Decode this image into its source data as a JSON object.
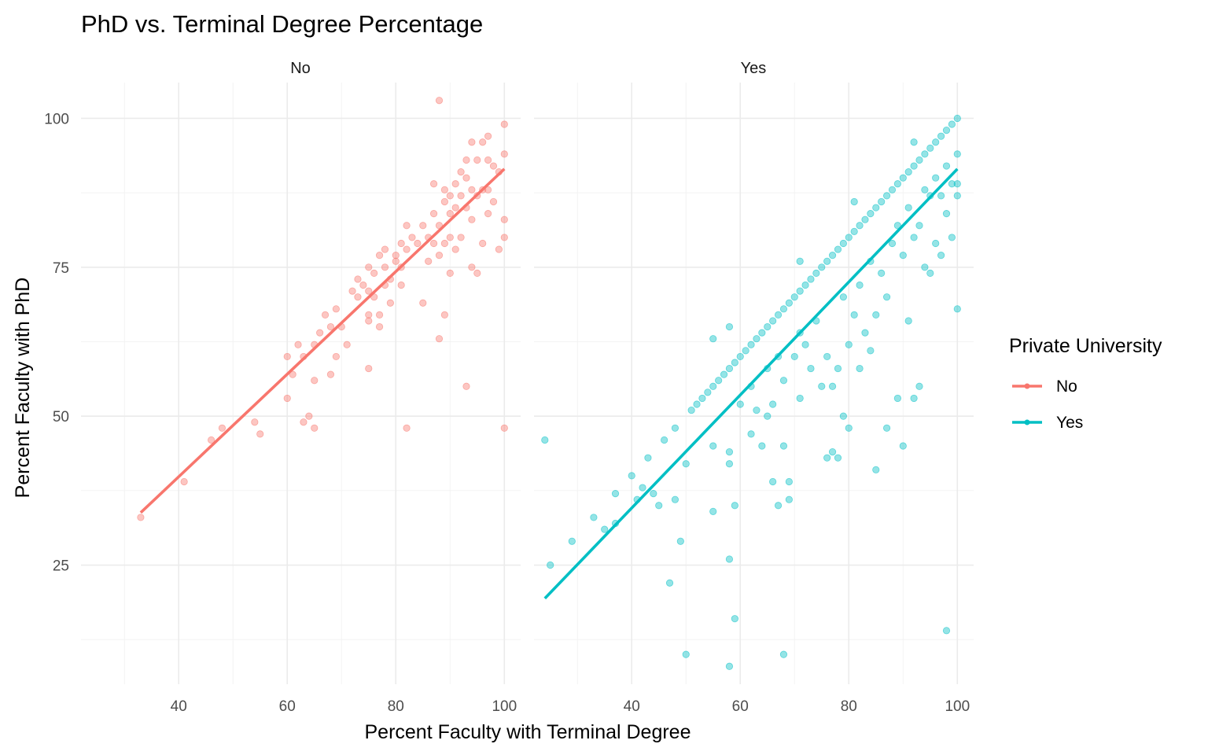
{
  "chart_data": {
    "type": "scatter",
    "title": "PhD vs. Terminal Degree Percentage",
    "xlabel": "Percent Faculty with Terminal Degree",
    "ylabel": "Percent Faculty with PhD",
    "xlim": [
      22,
      103
    ],
    "ylim": [
      5,
      106
    ],
    "x_ticks": [
      40,
      60,
      80,
      100
    ],
    "y_ticks": [
      25,
      50,
      75,
      100
    ],
    "grid": true,
    "legend": {
      "title": "Private University",
      "position": "right",
      "entries": [
        {
          "label": "No",
          "color": "#F8766D"
        },
        {
          "label": "Yes",
          "color": "#00BFC4"
        }
      ]
    },
    "panels": [
      {
        "strip": "No",
        "color": "#F8766D",
        "fit": {
          "x": [
            33,
            100
          ],
          "y": [
            33.8,
            91.5
          ]
        },
        "points": [
          [
            33,
            33
          ],
          [
            41,
            39
          ],
          [
            46,
            46
          ],
          [
            48,
            48
          ],
          [
            54,
            49
          ],
          [
            55,
            47
          ],
          [
            60,
            53
          ],
          [
            60,
            60
          ],
          [
            61,
            57
          ],
          [
            62,
            62
          ],
          [
            63,
            49
          ],
          [
            63,
            60
          ],
          [
            64,
            50
          ],
          [
            65,
            48
          ],
          [
            65,
            56
          ],
          [
            65,
            62
          ],
          [
            66,
            64
          ],
          [
            67,
            67
          ],
          [
            68,
            57
          ],
          [
            68,
            65
          ],
          [
            69,
            60
          ],
          [
            69,
            68
          ],
          [
            70,
            65
          ],
          [
            71,
            62
          ],
          [
            72,
            71
          ],
          [
            73,
            70
          ],
          [
            73,
            73
          ],
          [
            74,
            72
          ],
          [
            75,
            58
          ],
          [
            75,
            66
          ],
          [
            75,
            67
          ],
          [
            75,
            71
          ],
          [
            75,
            75
          ],
          [
            76,
            70
          ],
          [
            76,
            74
          ],
          [
            77,
            65
          ],
          [
            77,
            67
          ],
          [
            77,
            77
          ],
          [
            78,
            72
          ],
          [
            78,
            75
          ],
          [
            78,
            78
          ],
          [
            79,
            69
          ],
          [
            79,
            73
          ],
          [
            80,
            76
          ],
          [
            80,
            77
          ],
          [
            81,
            72
          ],
          [
            81,
            75
          ],
          [
            81,
            79
          ],
          [
            82,
            48
          ],
          [
            82,
            78
          ],
          [
            82,
            82
          ],
          [
            83,
            80
          ],
          [
            84,
            79
          ],
          [
            85,
            69
          ],
          [
            85,
            82
          ],
          [
            86,
            76
          ],
          [
            86,
            80
          ],
          [
            87,
            79
          ],
          [
            87,
            84
          ],
          [
            87,
            89
          ],
          [
            88,
            63
          ],
          [
            88,
            77
          ],
          [
            88,
            82
          ],
          [
            88,
            103
          ],
          [
            89,
            67
          ],
          [
            89,
            79
          ],
          [
            89,
            86
          ],
          [
            89,
            88
          ],
          [
            90,
            74
          ],
          [
            90,
            80
          ],
          [
            90,
            84
          ],
          [
            90,
            87
          ],
          [
            91,
            78
          ],
          [
            91,
            85
          ],
          [
            91,
            89
          ],
          [
            92,
            80
          ],
          [
            92,
            87
          ],
          [
            92,
            91
          ],
          [
            93,
            55
          ],
          [
            93,
            85
          ],
          [
            93,
            90
          ],
          [
            93,
            93
          ],
          [
            94,
            75
          ],
          [
            94,
            83
          ],
          [
            94,
            88
          ],
          [
            94,
            96
          ],
          [
            95,
            74
          ],
          [
            95,
            87
          ],
          [
            95,
            93
          ],
          [
            96,
            79
          ],
          [
            96,
            88
          ],
          [
            96,
            96
          ],
          [
            97,
            84
          ],
          [
            97,
            88
          ],
          [
            97,
            93
          ],
          [
            97,
            97
          ],
          [
            98,
            86
          ],
          [
            98,
            92
          ],
          [
            99,
            78
          ],
          [
            99,
            91
          ],
          [
            100,
            48
          ],
          [
            100,
            80
          ],
          [
            100,
            83
          ],
          [
            100,
            94
          ],
          [
            100,
            99
          ]
        ]
      },
      {
        "strip": "Yes",
        "color": "#00BFC4",
        "fit": {
          "x": [
            24,
            100
          ],
          "y": [
            19.4,
            91.5
          ]
        },
        "points": [
          [
            24,
            46
          ],
          [
            25,
            25
          ],
          [
            29,
            29
          ],
          [
            33,
            33
          ],
          [
            35,
            31
          ],
          [
            37,
            32
          ],
          [
            37,
            37
          ],
          [
            40,
            40
          ],
          [
            41,
            36
          ],
          [
            42,
            38
          ],
          [
            43,
            43
          ],
          [
            44,
            37
          ],
          [
            45,
            35
          ],
          [
            46,
            46
          ],
          [
            47,
            22
          ],
          [
            48,
            48
          ],
          [
            48,
            36
          ],
          [
            49,
            29
          ],
          [
            50,
            10
          ],
          [
            50,
            42
          ],
          [
            51,
            51
          ],
          [
            52,
            52
          ],
          [
            53,
            53
          ],
          [
            54,
            54
          ],
          [
            55,
            34
          ],
          [
            55,
            45
          ],
          [
            55,
            55
          ],
          [
            55,
            63
          ],
          [
            56,
            56
          ],
          [
            57,
            57
          ],
          [
            58,
            8
          ],
          [
            58,
            26
          ],
          [
            58,
            42
          ],
          [
            58,
            44
          ],
          [
            58,
            58
          ],
          [
            58,
            65
          ],
          [
            59,
            16
          ],
          [
            59,
            35
          ],
          [
            59,
            59
          ],
          [
            60,
            60
          ],
          [
            60,
            52
          ],
          [
            61,
            61
          ],
          [
            62,
            47
          ],
          [
            62,
            55
          ],
          [
            62,
            62
          ],
          [
            63,
            51
          ],
          [
            63,
            63
          ],
          [
            64,
            45
          ],
          [
            64,
            64
          ],
          [
            65,
            50
          ],
          [
            65,
            58
          ],
          [
            65,
            65
          ],
          [
            66,
            39
          ],
          [
            66,
            52
          ],
          [
            66,
            66
          ],
          [
            67,
            35
          ],
          [
            67,
            60
          ],
          [
            67,
            67
          ],
          [
            68,
            10
          ],
          [
            68,
            45
          ],
          [
            68,
            56
          ],
          [
            68,
            68
          ],
          [
            69,
            36
          ],
          [
            69,
            39
          ],
          [
            69,
            69
          ],
          [
            70,
            60
          ],
          [
            70,
            70
          ],
          [
            71,
            53
          ],
          [
            71,
            64
          ],
          [
            71,
            71
          ],
          [
            71,
            76
          ],
          [
            72,
            62
          ],
          [
            72,
            72
          ],
          [
            73,
            58
          ],
          [
            73,
            73
          ],
          [
            74,
            66
          ],
          [
            74,
            74
          ],
          [
            75,
            55
          ],
          [
            75,
            75
          ],
          [
            76,
            43
          ],
          [
            76,
            60
          ],
          [
            76,
            76
          ],
          [
            77,
            44
          ],
          [
            77,
            55
          ],
          [
            77,
            77
          ],
          [
            78,
            43
          ],
          [
            78,
            58
          ],
          [
            78,
            78
          ],
          [
            79,
            50
          ],
          [
            79,
            70
          ],
          [
            79,
            79
          ],
          [
            80,
            48
          ],
          [
            80,
            62
          ],
          [
            80,
            80
          ],
          [
            81,
            67
          ],
          [
            81,
            86
          ],
          [
            81,
            81
          ],
          [
            82,
            58
          ],
          [
            82,
            72
          ],
          [
            82,
            82
          ],
          [
            83,
            64
          ],
          [
            83,
            83
          ],
          [
            84,
            61
          ],
          [
            84,
            76
          ],
          [
            84,
            84
          ],
          [
            85,
            41
          ],
          [
            85,
            67
          ],
          [
            85,
            85
          ],
          [
            86,
            74
          ],
          [
            86,
            86
          ],
          [
            87,
            48
          ],
          [
            87,
            70
          ],
          [
            87,
            87
          ],
          [
            88,
            79
          ],
          [
            88,
            88
          ],
          [
            89,
            53
          ],
          [
            89,
            82
          ],
          [
            89,
            89
          ],
          [
            90,
            45
          ],
          [
            90,
            77
          ],
          [
            90,
            90
          ],
          [
            91,
            66
          ],
          [
            91,
            85
          ],
          [
            91,
            91
          ],
          [
            92,
            53
          ],
          [
            92,
            80
          ],
          [
            92,
            92
          ],
          [
            92,
            96
          ],
          [
            93,
            55
          ],
          [
            93,
            82
          ],
          [
            93,
            93
          ],
          [
            94,
            75
          ],
          [
            94,
            88
          ],
          [
            94,
            94
          ],
          [
            95,
            74
          ],
          [
            95,
            87
          ],
          [
            95,
            95
          ],
          [
            96,
            79
          ],
          [
            96,
            90
          ],
          [
            96,
            96
          ],
          [
            97,
            77
          ],
          [
            97,
            87
          ],
          [
            97,
            97
          ],
          [
            98,
            14
          ],
          [
            98,
            84
          ],
          [
            98,
            92
          ],
          [
            98,
            98
          ],
          [
            99,
            80
          ],
          [
            99,
            89
          ],
          [
            99,
            99
          ],
          [
            100,
            68
          ],
          [
            100,
            87
          ],
          [
            100,
            89
          ],
          [
            100,
            94
          ],
          [
            100,
            100
          ]
        ]
      }
    ]
  }
}
